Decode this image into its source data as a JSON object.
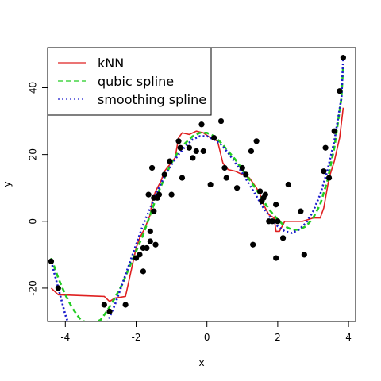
{
  "chart_data": {
    "type": "scatter",
    "title": "",
    "xlabel": "x",
    "ylabel": "y",
    "xlim": [
      -4.5,
      4.2
    ],
    "ylim": [
      -30,
      52
    ],
    "xticks": [
      -4,
      -2,
      0,
      2,
      4
    ],
    "yticks": [
      -20,
      0,
      20,
      40
    ],
    "grid": false,
    "legend_position": "top-left",
    "legend": [
      {
        "label": "kNN",
        "color": "#df2020",
        "dash": "solid"
      },
      {
        "label": "qubic spline",
        "color": "#22cc22",
        "dash": "dashed"
      },
      {
        "label": "smoothing spline",
        "color": "#1a1acc",
        "dash": "dotted"
      }
    ],
    "points": {
      "x": [
        -4.4,
        -4.2,
        -2.9,
        -2.75,
        -2.3,
        -2.0,
        -1.9,
        -1.8,
        -1.8,
        -1.7,
        -1.65,
        -1.6,
        -1.6,
        -1.55,
        -1.5,
        -1.5,
        -1.45,
        -1.4,
        -1.35,
        -1.2,
        -1.05,
        -1.0,
        -0.8,
        -0.75,
        -0.7,
        -0.5,
        -0.4,
        -0.3,
        -0.15,
        -0.1,
        0.1,
        0.2,
        0.4,
        0.5,
        0.55,
        0.85,
        1.0,
        1.1,
        1.25,
        1.3,
        1.4,
        1.5,
        1.55,
        1.6,
        1.65,
        1.75,
        1.85,
        1.95,
        1.95,
        2.0,
        2.15,
        2.3,
        2.65,
        2.75,
        3.3,
        3.35,
        3.45,
        3.6,
        3.75,
        3.85
      ],
      "y": [
        -12,
        -20,
        -25,
        -27,
        -25,
        -11,
        -10,
        -8,
        -15,
        -8,
        8,
        -3,
        -6,
        16,
        3,
        7,
        -7,
        7,
        8,
        14,
        18,
        8,
        24,
        22,
        13,
        22,
        19,
        21,
        29,
        21,
        11,
        25,
        30,
        16,
        13,
        10,
        16,
        14,
        21,
        -7,
        24,
        9,
        6,
        7,
        8,
        0,
        0,
        -11,
        5,
        0,
        -5,
        11,
        3,
        -10,
        15,
        22,
        13,
        27,
        39,
        49
      ]
    },
    "series": [
      {
        "name": "kNN",
        "color": "#df2020",
        "dash": "solid",
        "x": [
          -4.4,
          -4.2,
          -2.9,
          -2.75,
          -2.6,
          -2.3,
          -2.0,
          -1.9,
          -1.75,
          -1.6,
          -1.55,
          -1.45,
          -1.3,
          -1.2,
          -1.05,
          -0.9,
          -0.8,
          -0.7,
          -0.5,
          -0.3,
          -0.1,
          0.1,
          0.3,
          0.45,
          0.6,
          0.8,
          1.0,
          1.2,
          1.4,
          1.5,
          1.6,
          1.75,
          1.9,
          1.95,
          2.05,
          2.2,
          2.5,
          2.7,
          3.0,
          3.2,
          3.3,
          3.45,
          3.6,
          3.75,
          3.85
        ],
        "y": [
          -20,
          -22,
          -22.5,
          -24,
          -23,
          -22.5,
          -8,
          -5,
          -2,
          2,
          6,
          9,
          12,
          15,
          17,
          19,
          25,
          26.5,
          26,
          27,
          26.5,
          25,
          24,
          17.5,
          15.5,
          15,
          14,
          13,
          10,
          8,
          5,
          2,
          1,
          -3,
          -3,
          0,
          0,
          0,
          1,
          1,
          4,
          13,
          18,
          25,
          34
        ]
      },
      {
        "name": "qubic spline",
        "color": "#22cc22",
        "dash": "dashed",
        "x": [
          -4.4,
          -4.2,
          -4.0,
          -3.8,
          -3.6,
          -3.4,
          -3.2,
          -3.0,
          -2.8,
          -2.6,
          -2.4,
          -2.2,
          -2.0,
          -1.8,
          -1.6,
          -1.4,
          -1.2,
          -1.0,
          -0.8,
          -0.6,
          -0.4,
          -0.2,
          0.0,
          0.2,
          0.4,
          0.6,
          0.8,
          1.0,
          1.2,
          1.4,
          1.6,
          1.8,
          2.0,
          2.2,
          2.4,
          2.6,
          2.8,
          3.0,
          3.2,
          3.4,
          3.6,
          3.8,
          3.85
        ],
        "y": [
          -11,
          -17,
          -22,
          -26,
          -29,
          -30.5,
          -30.5,
          -29.5,
          -26.5,
          -23,
          -19,
          -14,
          -9,
          -4,
          2,
          8,
          13,
          17.5,
          21,
          23.5,
          25.5,
          26.5,
          26.5,
          25.5,
          23.5,
          21,
          18.5,
          15.5,
          12.5,
          9.5,
          6,
          3,
          0.5,
          -1.5,
          -2.5,
          -2.5,
          -1.5,
          1,
          5,
          12,
          22,
          37,
          47
        ]
      },
      {
        "name": "smoothing spline",
        "color": "#1a1acc",
        "dash": "dotted",
        "x": [
          -4.4,
          -4.2,
          -4.0,
          -3.8,
          -3.6,
          -3.4,
          -3.2,
          -3.0,
          -2.8,
          -2.6,
          -2.4,
          -2.2,
          -2.0,
          -1.8,
          -1.6,
          -1.4,
          -1.2,
          -1.0,
          -0.8,
          -0.6,
          -0.4,
          -0.2,
          0.0,
          0.2,
          0.4,
          0.6,
          0.8,
          1.0,
          1.2,
          1.4,
          1.6,
          1.8,
          2.0,
          2.2,
          2.4,
          2.6,
          2.8,
          3.0,
          3.2,
          3.4,
          3.6,
          3.8,
          3.85
        ],
        "y": [
          -12,
          -20,
          -28,
          -34,
          -37,
          -38,
          -37,
          -34,
          -30,
          -25,
          -19,
          -13,
          -7,
          -1,
          4,
          9,
          13.5,
          17,
          20,
          22.5,
          24.5,
          25.5,
          25.5,
          24.5,
          23,
          20.5,
          17.5,
          14.5,
          11,
          7.5,
          4,
          1,
          -1.5,
          -3,
          -3.5,
          -2.5,
          -0.5,
          3,
          8,
          15,
          24,
          37,
          49
        ]
      }
    ]
  }
}
